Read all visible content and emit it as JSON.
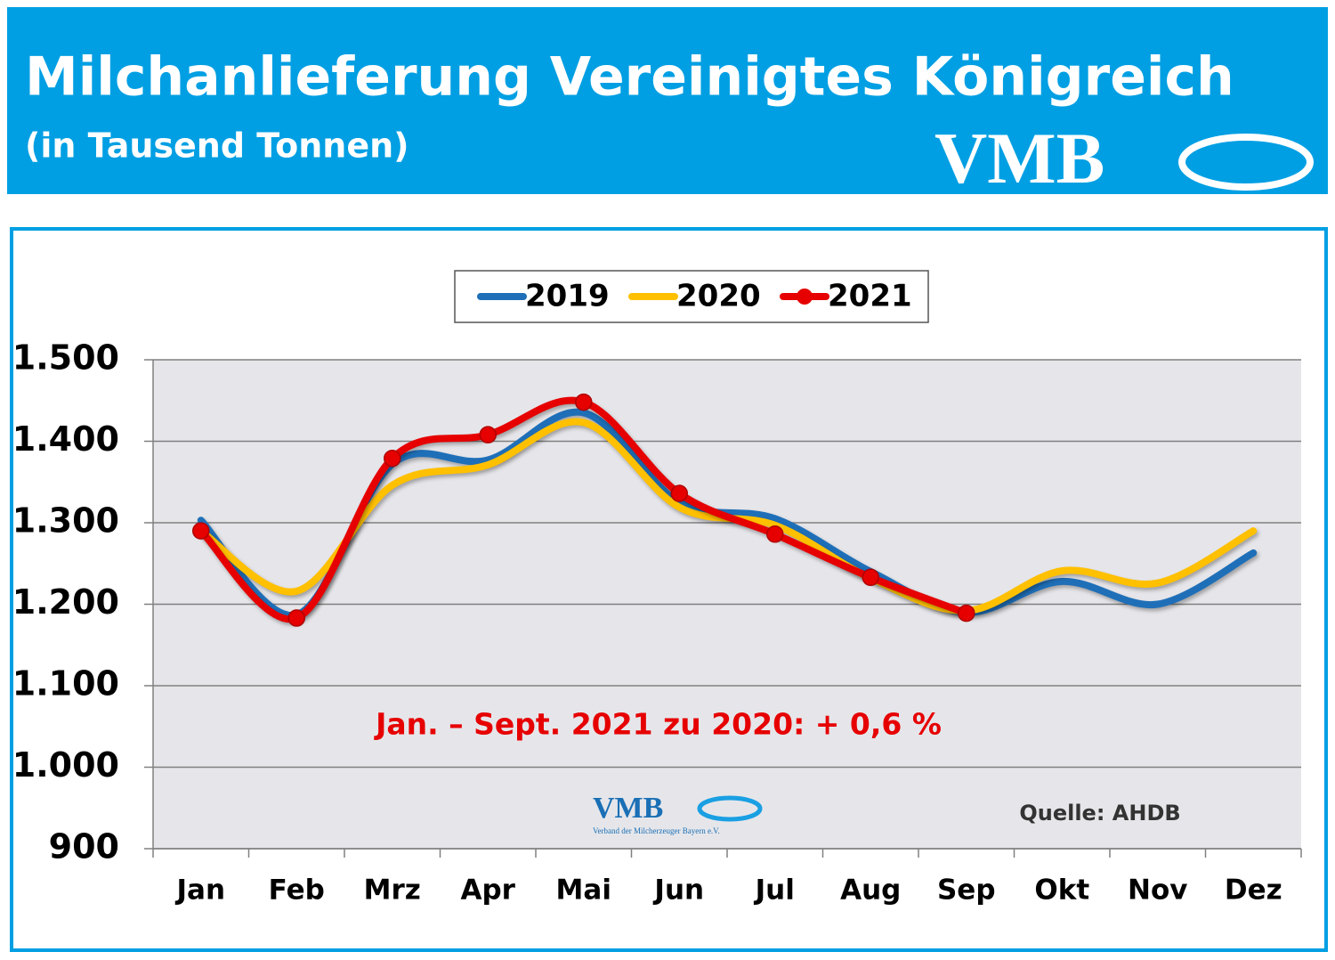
{
  "chart_data": {
    "type": "line",
    "title": "Milchanlieferung Vereinigtes Königreich",
    "subtitle": "(in Tausend Tonnen)",
    "logo": "VMB",
    "logo_subtitle": "Verband der Milcherzeuger Bayern e.V.",
    "annotation": "Jan. – Sept. 2021 zu 2020: + 0,6 %",
    "source": "Quelle: AHDB",
    "categories": [
      "Jan",
      "Feb",
      "Mrz",
      "Apr",
      "Mai",
      "Jun",
      "Jul",
      "Aug",
      "Sep",
      "Okt",
      "Nov",
      "Dez"
    ],
    "series": [
      {
        "name": "2019",
        "color": "#1f6fb8",
        "values": [
          1303,
          1187,
          1372,
          1377,
          1435,
          1325,
          1305,
          1240,
          1190,
          1228,
          1200,
          1263
        ]
      },
      {
        "name": "2020",
        "color": "#ffc000",
        "values": [
          1290,
          1216,
          1346,
          1371,
          1423,
          1319,
          1297,
          1232,
          1192,
          1241,
          1226,
          1290
        ]
      },
      {
        "name": "2021",
        "color": "#e60000",
        "marker": true,
        "values": [
          1290,
          1183,
          1379,
          1408,
          1448,
          1336,
          1286,
          1233,
          1189,
          null,
          null,
          null
        ]
      }
    ],
    "ylim": [
      900,
      1500
    ],
    "yticks": [
      900,
      {
        "value": 1000,
        "label": "1.000"
      },
      {
        "value": 1100,
        "label": "1.100"
      },
      {
        "value": 1200,
        "label": "1.200"
      },
      {
        "value": 1300,
        "label": "1.300"
      },
      {
        "value": 1400,
        "label": "1.400"
      },
      {
        "value": 1500,
        "label": "1.500"
      }
    ],
    "grid": true,
    "legend": "top"
  }
}
